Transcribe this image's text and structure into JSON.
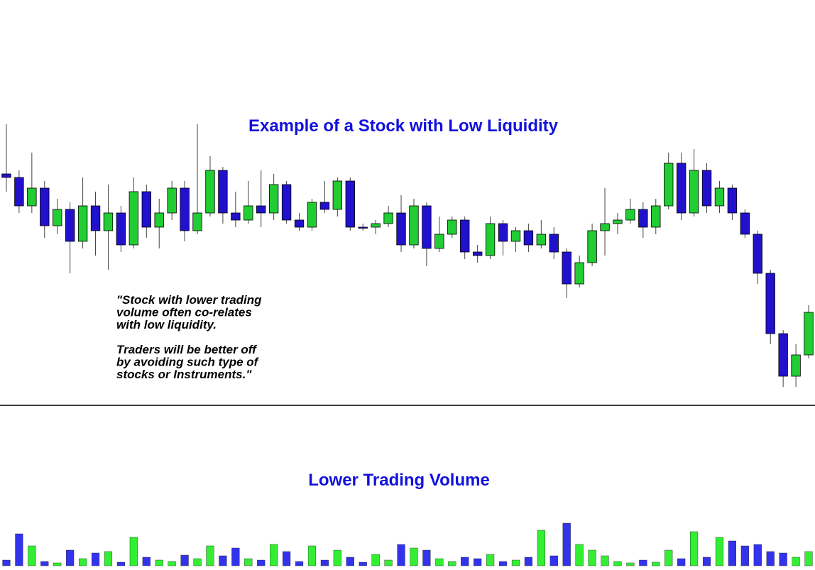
{
  "chart_data": [
    {
      "type": "candlestick",
      "title": "Example of a Stock with Low Liquidity",
      "annotation": [
        "\"Stock with lower trading",
        "volume often co-relates",
        "with low liquidity.",
        "",
        "Traders will be better off",
        "by avoiding such type of",
        "stocks or Instruments.\""
      ],
      "up_color": "#22cc33",
      "down_color": "#2211cc",
      "ylim": [
        40,
        440
      ],
      "open": [
        355,
        350,
        310,
        335,
        282,
        305,
        260,
        310,
        275,
        300,
        255,
        330,
        280,
        300,
        335,
        275,
        300,
        360,
        300,
        290,
        310,
        300,
        340,
        290,
        280,
        315,
        305,
        345,
        280,
        280,
        285,
        300,
        255,
        310,
        250,
        270,
        290,
        245,
        240,
        285,
        260,
        275,
        255,
        270,
        245,
        200,
        230,
        275,
        285,
        290,
        305,
        280,
        310,
        370,
        300,
        360,
        310,
        335,
        300,
        270,
        215,
        130,
        70,
        100
      ],
      "high": [
        425,
        360,
        385,
        345,
        320,
        315,
        350,
        330,
        340,
        310,
        350,
        340,
        320,
        345,
        345,
        425,
        380,
        365,
        330,
        345,
        360,
        355,
        345,
        300,
        320,
        345,
        350,
        350,
        285,
        290,
        310,
        325,
        320,
        315,
        295,
        295,
        295,
        255,
        295,
        290,
        280,
        285,
        290,
        280,
        250,
        240,
        285,
        335,
        300,
        320,
        315,
        320,
        385,
        385,
        390,
        370,
        345,
        340,
        305,
        275,
        220,
        135,
        115,
        170
      ],
      "low": [
        330,
        300,
        300,
        265,
        270,
        215,
        250,
        240,
        220,
        245,
        250,
        265,
        250,
        290,
        260,
        270,
        295,
        285,
        280,
        285,
        280,
        290,
        285,
        275,
        275,
        300,
        295,
        275,
        275,
        270,
        280,
        245,
        250,
        225,
        245,
        265,
        235,
        230,
        235,
        240,
        245,
        245,
        250,
        235,
        180,
        195,
        225,
        240,
        270,
        285,
        265,
        270,
        305,
        290,
        295,
        300,
        300,
        290,
        265,
        200,
        115,
        55,
        55,
        95
      ],
      "close": [
        350,
        310,
        335,
        282,
        305,
        260,
        310,
        275,
        300,
        255,
        330,
        280,
        300,
        335,
        275,
        300,
        360,
        300,
        290,
        310,
        300,
        340,
        290,
        280,
        315,
        305,
        345,
        280,
        280,
        285,
        300,
        255,
        310,
        250,
        270,
        290,
        245,
        240,
        285,
        260,
        275,
        255,
        270,
        245,
        200,
        230,
        275,
        285,
        290,
        305,
        280,
        310,
        370,
        300,
        360,
        310,
        335,
        300,
        270,
        215,
        130,
        70,
        100,
        160
      ]
    },
    {
      "type": "bar",
      "title": "Lower Trading Volume",
      "ylim": [
        0,
        65
      ],
      "values": [
        8,
        45,
        28,
        6,
        4,
        22,
        10,
        18,
        20,
        5,
        40,
        12,
        8,
        6,
        15,
        10,
        28,
        14,
        25,
        10,
        8,
        30,
        20,
        6,
        28,
        8,
        22,
        12,
        5,
        16,
        8,
        30,
        25,
        22,
        10,
        6,
        12,
        10,
        16,
        6,
        8,
        12,
        50,
        14,
        60,
        30,
        22,
        14,
        6,
        4,
        8,
        5,
        22,
        10,
        48,
        12,
        40,
        35,
        28,
        30,
        20,
        18,
        12,
        20
      ],
      "colors": [
        "#3333ee",
        "#3333ee",
        "#33ee33",
        "#3333ee",
        "#33ee33",
        "#3333ee",
        "#33ee33",
        "#3333ee",
        "#33ee33",
        "#3333ee",
        "#33ee33",
        "#3333ee",
        "#33ee33",
        "#33ee33",
        "#3333ee",
        "#33ee33",
        "#33ee33",
        "#3333ee",
        "#3333ee",
        "#33ee33",
        "#3333ee",
        "#33ee33",
        "#3333ee",
        "#3333ee",
        "#33ee33",
        "#3333ee",
        "#33ee33",
        "#3333ee",
        "#3333ee",
        "#33ee33",
        "#33ee33",
        "#3333ee",
        "#33ee33",
        "#3333ee",
        "#33ee33",
        "#33ee33",
        "#3333ee",
        "#3333ee",
        "#33ee33",
        "#3333ee",
        "#33ee33",
        "#3333ee",
        "#33ee33",
        "#3333ee",
        "#3333ee",
        "#33ee33",
        "#33ee33",
        "#33ee33",
        "#33ee33",
        "#33ee33",
        "#3333ee",
        "#33ee33",
        "#33ee33",
        "#3333ee",
        "#33ee33",
        "#3333ee",
        "#33ee33",
        "#3333ee",
        "#3333ee",
        "#3333ee",
        "#3333ee",
        "#3333ee",
        "#33ee33",
        "#33ee33"
      ]
    }
  ]
}
